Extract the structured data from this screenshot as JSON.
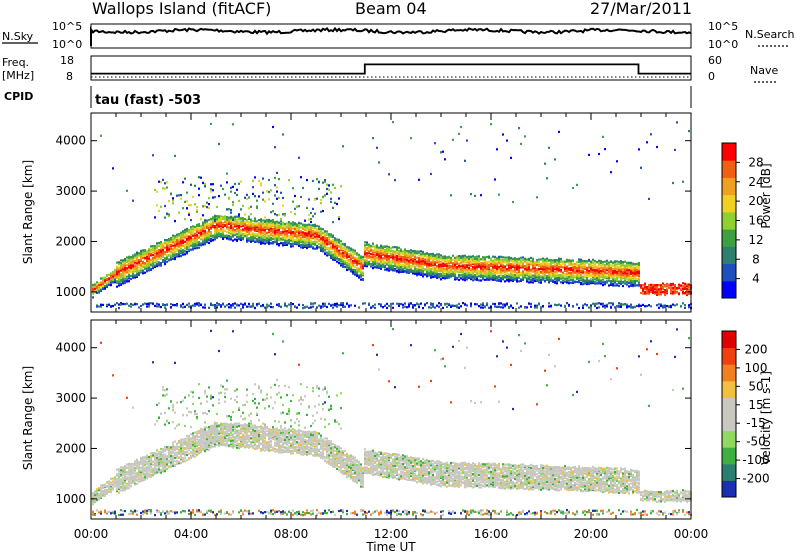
{
  "header": {
    "station": "Wallops Island (fitACF)",
    "beam": "Beam 04",
    "date": "27/Mar/2011"
  },
  "strip_labels": {
    "nsky": "N.Sky",
    "nsky_ticks": [
      "10^5",
      "10^0"
    ],
    "nsearch": "N.Search",
    "nsearch_ticks": [
      "10^5",
      "10^0"
    ],
    "freq": "Freq.",
    "freq_unit": "[MHz]",
    "freq_ticks": [
      "18",
      "8"
    ],
    "nave": "Nave",
    "nave_ticks": [
      "60",
      "0"
    ],
    "cpid": "CPID",
    "cpid_value": "tau (fast) -503"
  },
  "chart_data": [
    {
      "type": "heatmap",
      "name": "power",
      "ylabel": "Slant Range [km]",
      "xlabel": "Time UT",
      "x_ticks": [
        "00:00",
        "04:00",
        "08:00",
        "12:00",
        "16:00",
        "20:00",
        "00:00"
      ],
      "x_range_hours": [
        0,
        24
      ],
      "y_ticks": [
        1000,
        2000,
        3000,
        4000
      ],
      "ylim": [
        600,
        4550
      ],
      "colorbar": {
        "label": "Power [dB]",
        "ticks": [
          "28",
          "24",
          "20",
          "16",
          "12",
          "8",
          "4"
        ],
        "colors": [
          "#0000ff",
          "#1f4fbf",
          "#2f7f6f",
          "#3fa040",
          "#8fcf30",
          "#f0d020",
          "#f0a020",
          "#f06010",
          "#ff0000"
        ]
      },
      "echo_bands": [
        {
          "start_h": 0.0,
          "end_h": 1.0,
          "range_start_km": 1050,
          "range_end_km": 1400
        },
        {
          "start_h": 1.0,
          "end_h": 5.0,
          "range_start_km": 1400,
          "range_end_km": 2350
        },
        {
          "start_h": 5.0,
          "end_h": 9.0,
          "range_start_km": 2350,
          "range_end_km": 2150
        },
        {
          "start_h": 9.0,
          "end_h": 10.9,
          "range_start_km": 2150,
          "range_end_km": 1500
        },
        {
          "start_h": 10.9,
          "end_h": 14.0,
          "range_start_km": 1800,
          "range_end_km": 1550
        },
        {
          "start_h": 14.0,
          "end_h": 20.0,
          "range_start_km": 1550,
          "range_end_km": 1450
        },
        {
          "start_h": 20.0,
          "end_h": 21.9,
          "range_start_km": 1450,
          "range_end_km": 1400
        },
        {
          "start_h": 21.9,
          "end_h": 24.0,
          "range_start_km": 1100,
          "range_end_km": 1100
        }
      ]
    },
    {
      "type": "heatmap",
      "name": "velocity",
      "ylabel": "Slant Range [km]",
      "xlabel": "Time UT",
      "x_ticks": [
        "00:00",
        "04:00",
        "08:00",
        "12:00",
        "16:00",
        "20:00",
        "00:00"
      ],
      "x_range_hours": [
        0,
        24
      ],
      "y_ticks": [
        1000,
        2000,
        3000,
        4000
      ],
      "ylim": [
        600,
        4550
      ],
      "colorbar": {
        "label": "Velocity [m s-1]",
        "ticks": [
          "200",
          "100",
          "50",
          "15",
          "-15",
          "-50",
          "-100",
          "-200"
        ],
        "colors": [
          "#1a30b0",
          "#2a7f70",
          "#3fb040",
          "#90d860",
          "#c8c8c0",
          "#c8c8c0",
          "#f0c040",
          "#f08020",
          "#f04010",
          "#e00000"
        ]
      }
    }
  ],
  "freq_series": {
    "hours": [
      0,
      10.95,
      10.95,
      21.9,
      21.9,
      24
    ],
    "mhz": [
      10.2,
      10.2,
      14.8,
      14.8,
      10.2,
      10.2
    ]
  }
}
